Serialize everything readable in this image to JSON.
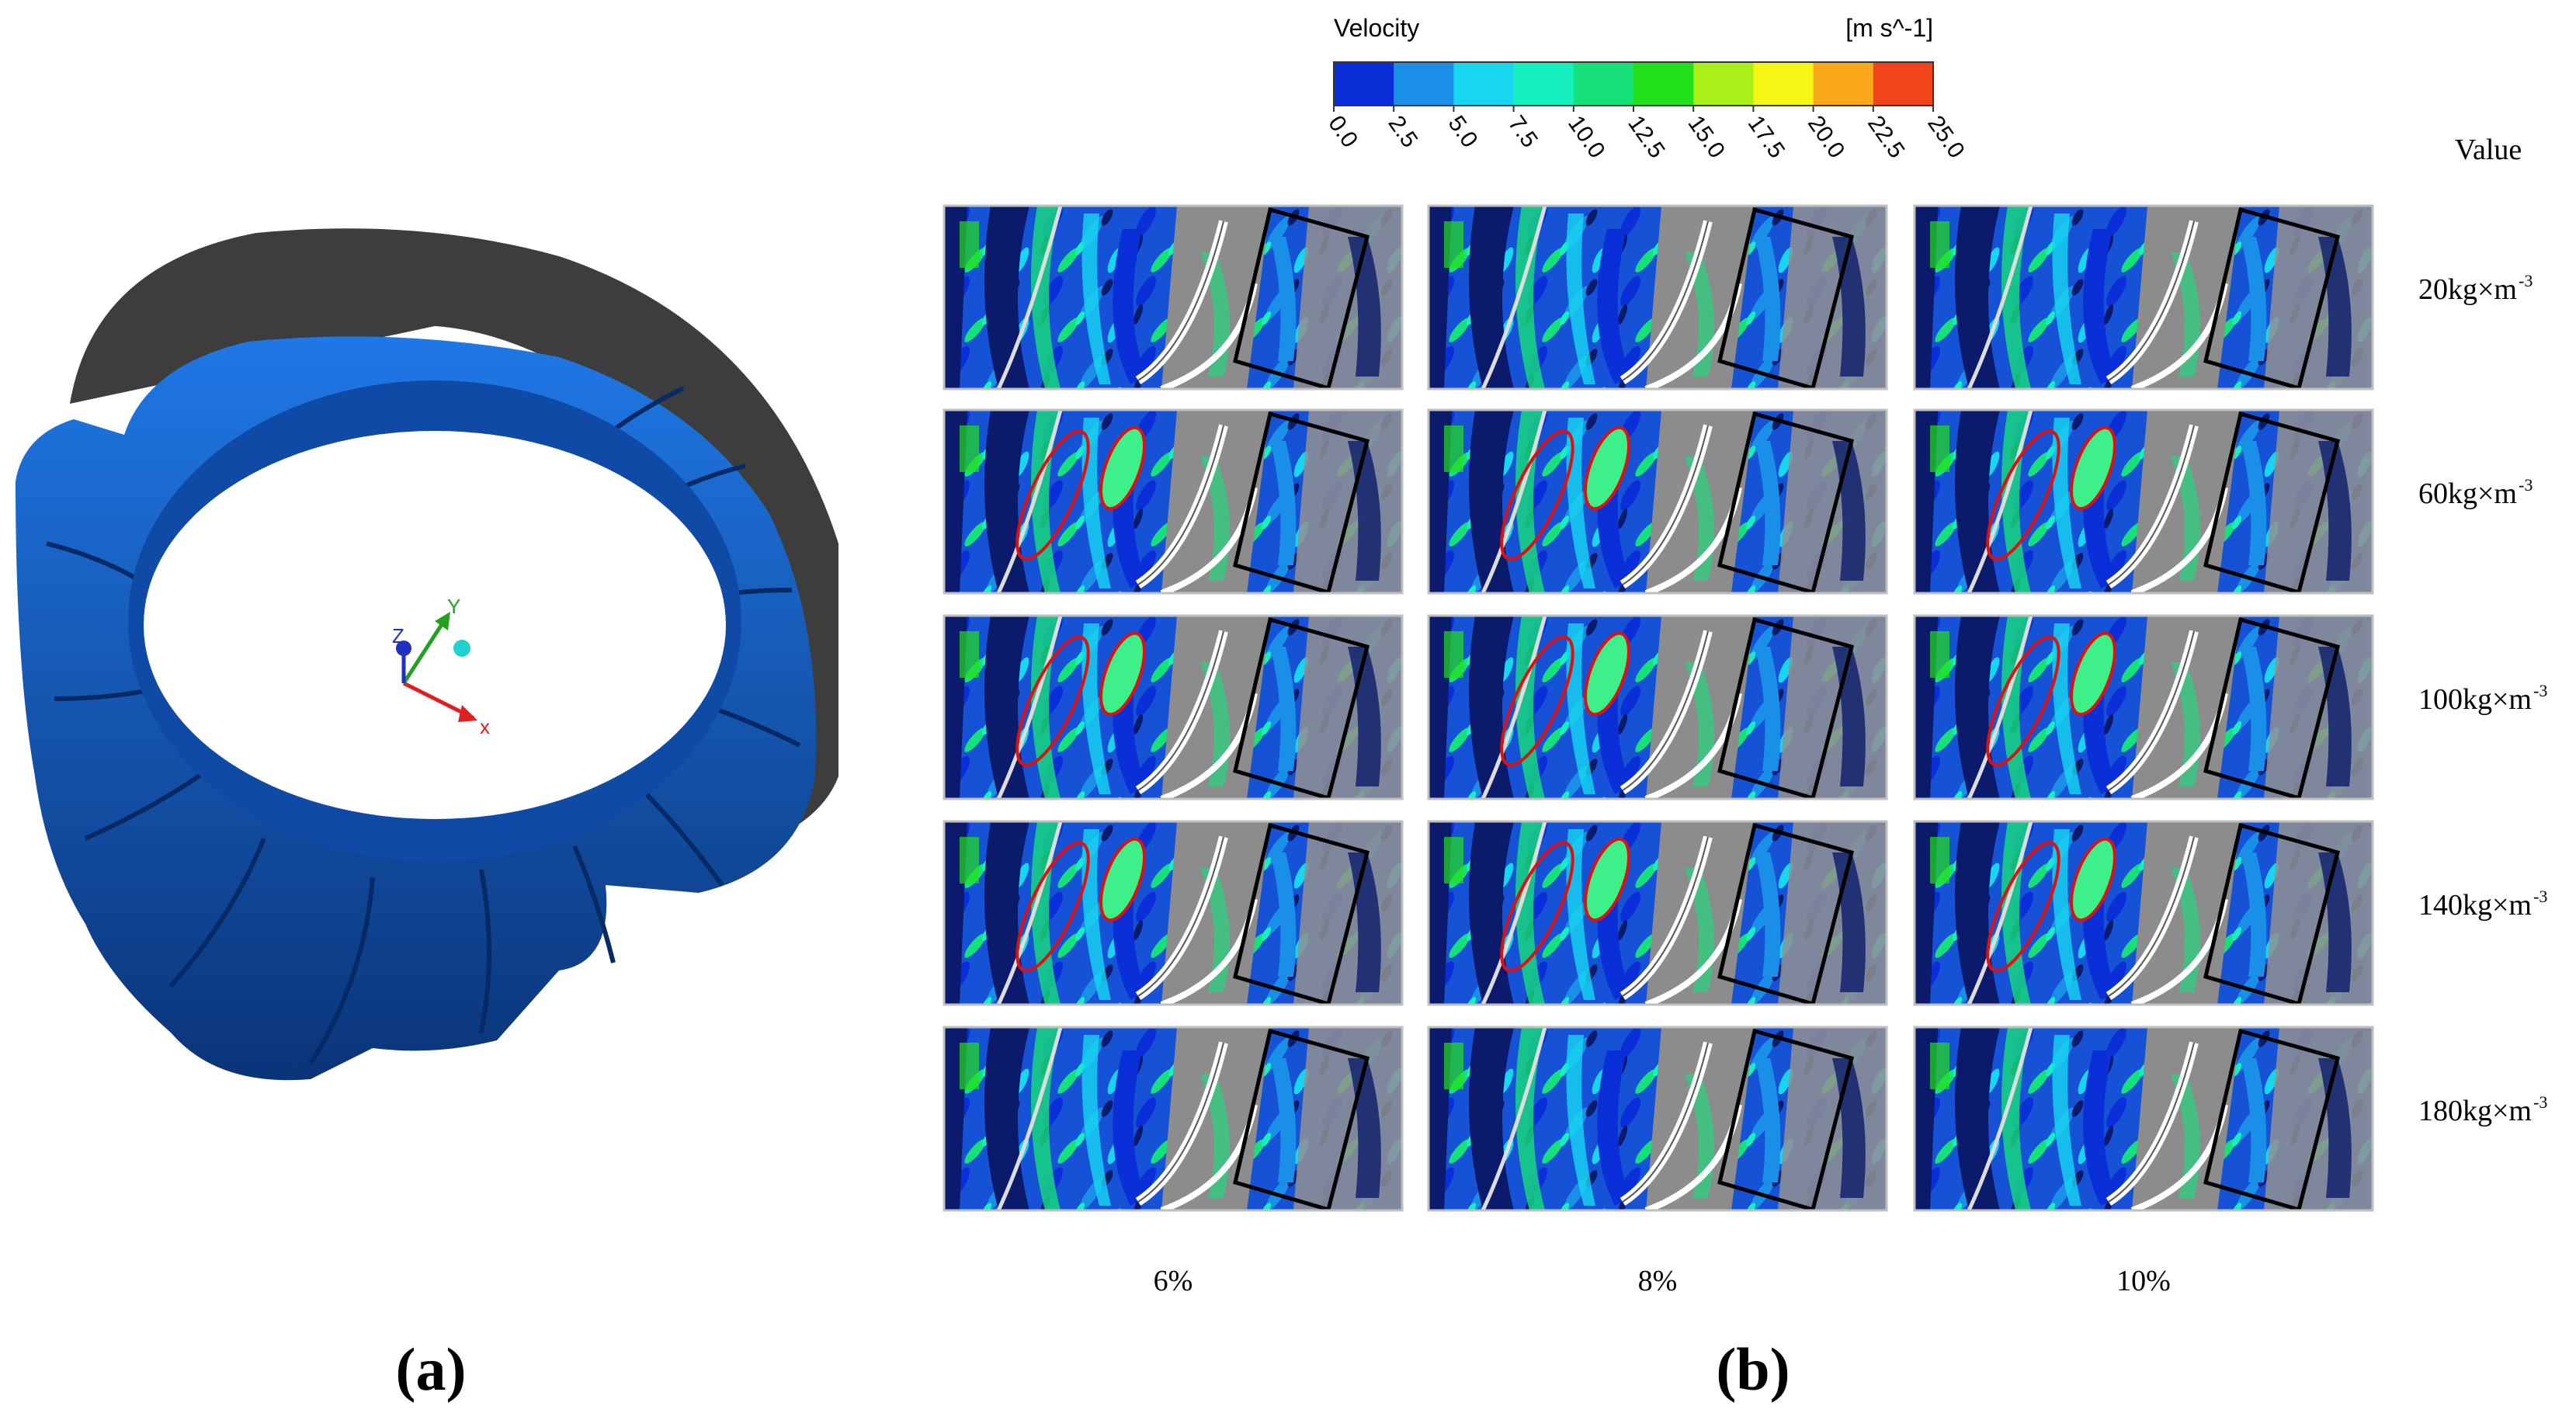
{
  "panel_a": {
    "label": "(a)",
    "axes": {
      "x": "x",
      "y": "Y",
      "z": "Z"
    },
    "colors": {
      "blade": "#1e6fd8",
      "blade_dark": "#0b3b86",
      "shroud": "#3c3c3c"
    }
  },
  "panel_b": {
    "label": "(b)",
    "colorbar": {
      "title": "Velocity",
      "unit": "[m s^-1]",
      "ticks": [
        "0.0",
        "2.5",
        "5.0",
        "7.5",
        "10.0",
        "12.5",
        "15.0",
        "17.5",
        "20.0",
        "22.5",
        "25.0"
      ],
      "colors": [
        "#0a2fd9",
        "#1a8fe8",
        "#17d7f0",
        "#14f0c0",
        "#16e07a",
        "#22e01a",
        "#a8f018",
        "#f6f614",
        "#f9a81a",
        "#f2441a"
      ]
    },
    "value_header": "Value",
    "rows": [
      "20kg×m",
      "60kg×m",
      "100kg×m",
      "140kg×m",
      "180kg×m"
    ],
    "row_exponent": "-3",
    "columns": [
      "6%",
      "8%",
      "10%"
    ]
  }
}
